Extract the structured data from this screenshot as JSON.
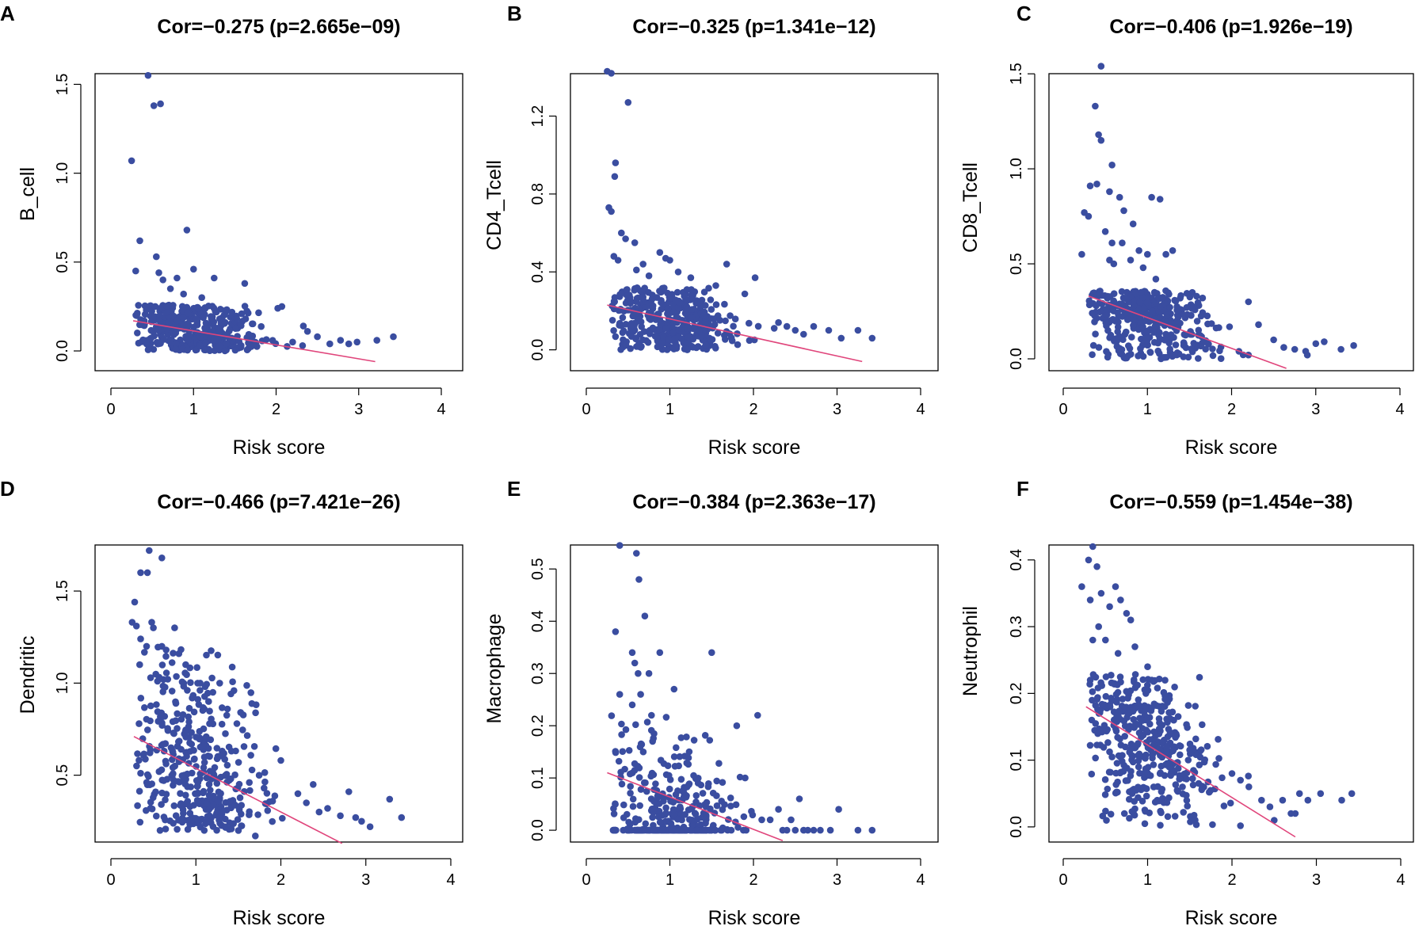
{
  "colors": {
    "points": "#3a4da0",
    "regression": "#e0457b"
  },
  "chart_data": [
    {
      "panel": "A",
      "type": "scatter",
      "title": "Cor=−0.275 (p=2.665e−09)",
      "xlabel": "Risk score",
      "ylabel": "B_cell",
      "xlim": [
        0,
        4
      ],
      "ylim": [
        -0.04,
        1.56
      ],
      "xticks": [
        0,
        1,
        2,
        3,
        4
      ],
      "yticks": [
        0.0,
        0.5,
        1.0,
        1.5
      ],
      "x_tick_labels": [
        "0",
        "1",
        "2",
        "3",
        "4"
      ],
      "y_tick_labels": [
        "0.0",
        "0.5",
        "1.0",
        "1.5"
      ],
      "regression": {
        "x": [
          0.27,
          3.2
        ],
        "y": [
          0.17,
          -0.06
        ]
      },
      "gen": {
        "n": 400,
        "yMin": 0.0,
        "yMax": 0.26,
        "spread": 0.11,
        "seed": 11
      },
      "points": [
        [
          0.45,
          1.55
        ],
        [
          0.52,
          1.38
        ],
        [
          0.6,
          1.39
        ],
        [
          0.25,
          1.07
        ],
        [
          0.35,
          0.62
        ],
        [
          0.92,
          0.68
        ],
        [
          0.3,
          0.45
        ],
        [
          0.55,
          0.53
        ],
        [
          0.58,
          0.44
        ],
        [
          0.63,
          0.4
        ],
        [
          0.8,
          0.41
        ],
        [
          1.0,
          0.46
        ],
        [
          1.25,
          0.41
        ],
        [
          1.62,
          0.38
        ],
        [
          0.72,
          0.35
        ],
        [
          0.88,
          0.32
        ],
        [
          1.1,
          0.3
        ],
        [
          2.02,
          0.24
        ],
        [
          2.07,
          0.25
        ],
        [
          2.33,
          0.14
        ],
        [
          2.38,
          0.11
        ],
        [
          2.5,
          0.08
        ],
        [
          2.65,
          0.04
        ],
        [
          2.78,
          0.06
        ],
        [
          2.88,
          0.04
        ],
        [
          2.98,
          0.05
        ],
        [
          3.22,
          0.06
        ],
        [
          3.42,
          0.08
        ],
        [
          2.2,
          0.05
        ],
        [
          2.32,
          0.03
        ]
      ]
    },
    {
      "panel": "B",
      "type": "scatter",
      "title": "Cor=−0.325 (p=1.341e−12)",
      "xlabel": "Risk score",
      "ylabel": "CD4_Tcell",
      "xlim": [
        0,
        4
      ],
      "ylim": [
        -0.03,
        1.43
      ],
      "xticks": [
        0,
        1,
        2,
        3,
        4
      ],
      "yticks": [
        0.0,
        0.4,
        0.8,
        1.2
      ],
      "x_tick_labels": [
        "0",
        "1",
        "2",
        "3",
        "4"
      ],
      "y_tick_labels": [
        "0.0",
        "0.4",
        "0.8",
        "1.2"
      ],
      "regression": {
        "x": [
          0.25,
          3.3
        ],
        "y": [
          0.23,
          -0.06
        ]
      },
      "gen": {
        "n": 400,
        "yMin": 0.0,
        "yMax": 0.32,
        "spread": 0.12,
        "seed": 22
      },
      "points": [
        [
          0.25,
          1.43
        ],
        [
          0.3,
          1.42
        ],
        [
          0.5,
          1.27
        ],
        [
          0.35,
          0.96
        ],
        [
          0.34,
          0.89
        ],
        [
          0.27,
          0.73
        ],
        [
          0.3,
          0.71
        ],
        [
          0.42,
          0.6
        ],
        [
          0.47,
          0.57
        ],
        [
          0.58,
          0.55
        ],
        [
          0.33,
          0.48
        ],
        [
          0.38,
          0.46
        ],
        [
          0.6,
          0.41
        ],
        [
          0.68,
          0.44
        ],
        [
          0.88,
          0.5
        ],
        [
          0.95,
          0.47
        ],
        [
          1.0,
          0.46
        ],
        [
          1.68,
          0.44
        ],
        [
          0.75,
          0.38
        ],
        [
          1.1,
          0.4
        ],
        [
          1.25,
          0.37
        ],
        [
          2.02,
          0.37
        ],
        [
          1.55,
          0.33
        ],
        [
          2.4,
          0.12
        ],
        [
          2.5,
          0.1
        ],
        [
          2.6,
          0.08
        ],
        [
          2.72,
          0.12
        ],
        [
          2.9,
          0.1
        ],
        [
          3.05,
          0.06
        ],
        [
          3.25,
          0.1
        ],
        [
          3.42,
          0.06
        ],
        [
          2.3,
          0.14
        ]
      ]
    },
    {
      "panel": "C",
      "type": "scatter",
      "title": "Cor=−0.406 (p=1.926e−19)",
      "xlabel": "Risk score",
      "ylabel": "CD8_Tcell",
      "xlim": [
        0,
        4
      ],
      "ylim": [
        -0.05,
        1.53
      ],
      "xticks": [
        0,
        1,
        2,
        3,
        4
      ],
      "yticks": [
        0.0,
        0.5,
        1.0,
        1.5
      ],
      "x_tick_labels": [
        "0",
        "1",
        "2",
        "3",
        "4"
      ],
      "y_tick_labels": [
        "0.0",
        "0.5",
        "1.0",
        "1.5"
      ],
      "regression": {
        "x": [
          0.3,
          2.65
        ],
        "y": [
          0.33,
          -0.05
        ]
      },
      "gen": {
        "n": 400,
        "yMin": 0.0,
        "yMax": 0.36,
        "spread": 0.13,
        "seed": 33
      },
      "points": [
        [
          0.45,
          1.54
        ],
        [
          0.38,
          1.33
        ],
        [
          0.42,
          1.18
        ],
        [
          0.45,
          1.15
        ],
        [
          0.58,
          1.02
        ],
        [
          0.4,
          0.92
        ],
        [
          0.32,
          0.91
        ],
        [
          0.55,
          0.88
        ],
        [
          0.67,
          0.85
        ],
        [
          0.72,
          0.78
        ],
        [
          1.05,
          0.85
        ],
        [
          1.15,
          0.84
        ],
        [
          0.25,
          0.77
        ],
        [
          0.3,
          0.75
        ],
        [
          0.5,
          0.67
        ],
        [
          0.83,
          0.71
        ],
        [
          0.7,
          0.61
        ],
        [
          0.58,
          0.61
        ],
        [
          0.22,
          0.55
        ],
        [
          0.55,
          0.52
        ],
        [
          0.9,
          0.57
        ],
        [
          1.0,
          0.55
        ],
        [
          1.22,
          0.55
        ],
        [
          1.3,
          0.57
        ],
        [
          0.8,
          0.52
        ],
        [
          0.6,
          0.5
        ],
        [
          0.95,
          0.48
        ],
        [
          1.1,
          0.42
        ],
        [
          2.2,
          0.3
        ],
        [
          2.32,
          0.18
        ],
        [
          2.5,
          0.1
        ],
        [
          2.62,
          0.06
        ],
        [
          2.75,
          0.05
        ],
        [
          2.88,
          0.04
        ],
        [
          3.0,
          0.08
        ],
        [
          3.3,
          0.05
        ],
        [
          3.45,
          0.07
        ],
        [
          3.1,
          0.09
        ],
        [
          2.9,
          0.02
        ],
        [
          2.2,
          0.02
        ]
      ]
    },
    {
      "panel": "D",
      "type": "scatter",
      "title": "Cor=−0.466 (p=7.421e−26)",
      "xlabel": "Risk score",
      "ylabel": "Dendritic",
      "xlim": [
        0,
        4
      ],
      "ylim": [
        0.15,
        1.75
      ],
      "xticks": [
        0,
        1,
        2,
        3,
        4
      ],
      "yticks": [
        0.5,
        1.0,
        1.5
      ],
      "x_tick_labels": [
        "0",
        "1",
        "2",
        "3",
        "4"
      ],
      "y_tick_labels": [
        "0.5",
        "1.0",
        "1.5"
      ],
      "regression": {
        "x": [
          0.27,
          2.72
        ],
        "y": [
          0.71,
          0.13
        ]
      },
      "gen": {
        "n": 400,
        "yMin": 0.2,
        "yMax": 1.2,
        "spread": 0.28,
        "seed": 44
      },
      "points": [
        [
          0.45,
          1.72
        ],
        [
          0.6,
          1.68
        ],
        [
          0.35,
          1.6
        ],
        [
          0.43,
          1.6
        ],
        [
          0.28,
          1.44
        ],
        [
          0.25,
          1.33
        ],
        [
          0.3,
          1.31
        ],
        [
          0.48,
          1.33
        ],
        [
          0.5,
          1.3
        ],
        [
          0.75,
          1.3
        ],
        [
          0.35,
          1.24
        ],
        [
          0.42,
          1.2
        ],
        [
          0.6,
          1.2
        ],
        [
          0.65,
          1.18
        ],
        [
          0.8,
          1.16
        ],
        [
          0.88,
          1.1
        ],
        [
          1.05,
          1.0
        ],
        [
          1.28,
          1.0
        ],
        [
          1.2,
          0.95
        ],
        [
          1.15,
          0.9
        ],
        [
          2.0,
          0.58
        ],
        [
          2.2,
          0.4
        ],
        [
          2.38,
          0.45
        ],
        [
          2.55,
          0.32
        ],
        [
          2.7,
          0.28
        ],
        [
          2.8,
          0.41
        ],
        [
          2.88,
          0.27
        ],
        [
          2.95,
          0.25
        ],
        [
          3.05,
          0.22
        ],
        [
          3.28,
          0.37
        ],
        [
          3.42,
          0.27
        ],
        [
          2.3,
          0.35
        ],
        [
          2.45,
          0.3
        ],
        [
          1.5,
          0.2
        ],
        [
          1.7,
          0.17
        ]
      ]
    },
    {
      "panel": "E",
      "type": "scatter",
      "title": "Cor=−0.384 (p=2.363e−17)",
      "xlabel": "Risk score",
      "ylabel": "Macrophage",
      "xlim": [
        0,
        4
      ],
      "ylim": [
        -0.012,
        0.552
      ],
      "xticks": [
        0,
        1,
        2,
        3,
        4
      ],
      "yticks": [
        0.0,
        0.1,
        0.2,
        0.3,
        0.4,
        0.5
      ],
      "x_tick_labels": [
        "0",
        "1",
        "2",
        "3",
        "4"
      ],
      "y_tick_labels": [
        "0.0",
        "0.1",
        "0.2",
        "0.3",
        "0.4",
        "0.5"
      ],
      "regression": {
        "x": [
          0.25,
          2.35
        ],
        "y": [
          0.11,
          -0.02
        ]
      },
      "gen": {
        "n": 380,
        "yMin": 0.0,
        "yMax": 0.22,
        "spread": 0.07,
        "seed": 55,
        "floorFrac": 0.45
      },
      "points": [
        [
          0.4,
          0.545
        ],
        [
          0.6,
          0.53
        ],
        [
          0.63,
          0.48
        ],
        [
          0.7,
          0.41
        ],
        [
          0.35,
          0.38
        ],
        [
          0.55,
          0.34
        ],
        [
          0.58,
          0.32
        ],
        [
          0.88,
          0.34
        ],
        [
          1.5,
          0.34
        ],
        [
          0.62,
          0.3
        ],
        [
          0.75,
          0.3
        ],
        [
          0.4,
          0.26
        ],
        [
          0.65,
          0.26
        ],
        [
          0.55,
          0.24
        ],
        [
          1.05,
          0.27
        ],
        [
          0.78,
          0.22
        ],
        [
          1.8,
          0.2
        ],
        [
          2.05,
          0.22
        ],
        [
          1.9,
          0.1
        ],
        [
          2.1,
          0.02
        ],
        [
          2.2,
          0.02
        ],
        [
          2.3,
          0.04
        ],
        [
          2.4,
          0.0
        ],
        [
          2.5,
          0.0
        ],
        [
          2.55,
          0.06
        ],
        [
          2.65,
          0.0
        ],
        [
          2.72,
          0.0
        ],
        [
          2.8,
          0.0
        ],
        [
          2.92,
          0.0
        ],
        [
          3.02,
          0.04
        ],
        [
          3.25,
          0.0
        ],
        [
          3.42,
          0.0
        ],
        [
          2.35,
          0.0
        ],
        [
          2.6,
          0.0
        ],
        [
          2.45,
          0.02
        ]
      ]
    },
    {
      "panel": "F",
      "type": "scatter",
      "title": "Cor=−0.559 (p=1.454e−38)",
      "xlabel": "Risk score",
      "ylabel": "Neutrophil",
      "xlim": [
        0,
        4
      ],
      "ylim": [
        -0.012,
        0.42
      ],
      "xticks": [
        0,
        1,
        2,
        3,
        4
      ],
      "yticks": [
        0.0,
        0.1,
        0.2,
        0.3,
        0.4
      ],
      "x_tick_labels": [
        "0",
        "1",
        "2",
        "3",
        "4"
      ],
      "y_tick_labels": [
        "0.0",
        "0.1",
        "0.2",
        "0.3",
        "0.4"
      ],
      "regression": {
        "x": [
          0.27,
          2.75
        ],
        "y": [
          0.18,
          -0.015
        ]
      },
      "gen": {
        "n": 400,
        "yMin": 0.0,
        "yMax": 0.23,
        "spread": 0.06,
        "seed": 66
      },
      "points": [
        [
          0.35,
          0.42
        ],
        [
          0.3,
          0.4
        ],
        [
          0.4,
          0.39
        ],
        [
          0.22,
          0.36
        ],
        [
          0.62,
          0.36
        ],
        [
          0.32,
          0.34
        ],
        [
          0.45,
          0.35
        ],
        [
          0.55,
          0.33
        ],
        [
          0.68,
          0.34
        ],
        [
          0.35,
          0.28
        ],
        [
          0.42,
          0.3
        ],
        [
          0.75,
          0.32
        ],
        [
          0.8,
          0.31
        ],
        [
          0.5,
          0.28
        ],
        [
          0.65,
          0.26
        ],
        [
          0.85,
          0.27
        ],
        [
          1.0,
          0.24
        ],
        [
          1.05,
          0.22
        ],
        [
          2.0,
          0.08
        ],
        [
          2.1,
          0.07
        ],
        [
          2.2,
          0.06
        ],
        [
          2.35,
          0.04
        ],
        [
          2.45,
          0.03
        ],
        [
          2.6,
          0.04
        ],
        [
          2.7,
          0.02
        ],
        [
          2.8,
          0.05
        ],
        [
          2.9,
          0.04
        ],
        [
          3.05,
          0.05
        ],
        [
          3.3,
          0.04
        ],
        [
          3.42,
          0.05
        ],
        [
          2.5,
          0.01
        ],
        [
          2.75,
          0.02
        ]
      ]
    }
  ]
}
